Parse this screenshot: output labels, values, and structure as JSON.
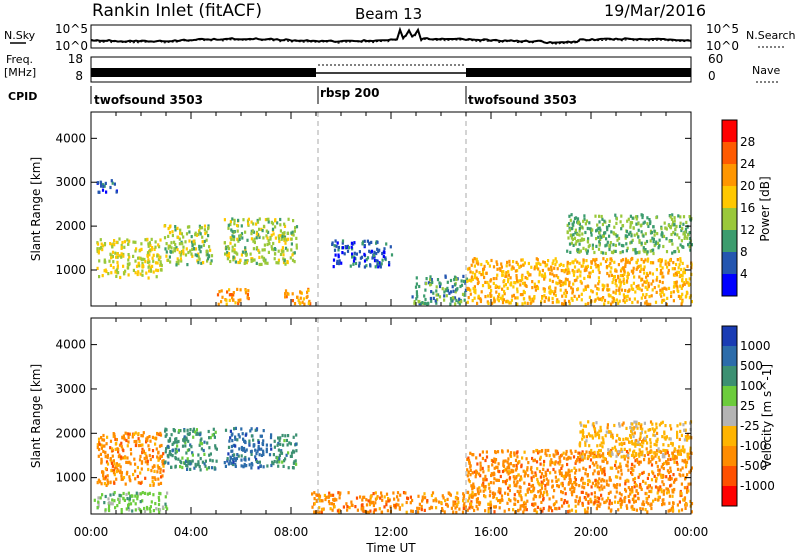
{
  "header": {
    "title": "Rankin Inlet (fitACF)",
    "beam": "Beam 13",
    "date": "19/Mar/2016"
  },
  "noise_panel": {
    "left_label": "N.Sky",
    "left_ticks": [
      "10^5",
      "10^0"
    ],
    "right_ticks": [
      "10^5",
      "10^0"
    ],
    "right_label": "N.Search"
  },
  "freq_panel": {
    "left_label_line1": "Freq.",
    "left_label_line2": "[MHz]",
    "left_ticks": [
      "18",
      "8"
    ],
    "right_ticks": [
      "60",
      "0"
    ],
    "right_label": "Nave"
  },
  "cpid": {
    "label": "CPID",
    "segments": [
      {
        "name": "twofsound 3503",
        "start_hour": 0,
        "end_hour": 9
      },
      {
        "name": "rbsp 200",
        "start_hour": 9,
        "end_hour": 15
      },
      {
        "name": "twofsound 3503",
        "start_hour": 15,
        "end_hour": 24
      }
    ]
  },
  "power_colorbar": {
    "label": "Power [dB]",
    "ticks": [
      "28",
      "24",
      "20",
      "16",
      "12",
      "8",
      "4"
    ],
    "colors": [
      "#ff0000",
      "#ff5a00",
      "#ff9600",
      "#ffc800",
      "#9ac83a",
      "#3c9c6e",
      "#2456b0",
      "#0000ff"
    ]
  },
  "velocity_colorbar": {
    "label": "Velocity [m s^-1]",
    "ticks": [
      "1000",
      "500",
      "100",
      "25",
      "-25",
      "-100",
      "-500",
      "-1000"
    ],
    "colors": [
      "#1a3cb4",
      "#2c6caa",
      "#3c9072",
      "#6ccc3c",
      "#b4b4b4",
      "#ffb400",
      "#ff8c00",
      "#ff5000",
      "#ff0000"
    ]
  },
  "chart_data": [
    {
      "type": "heatmap",
      "name": "power",
      "xlabel": "Time UT",
      "ylabel": "Slant Range [km]",
      "xlim": [
        0,
        24
      ],
      "ylim": [
        180,
        4600
      ],
      "xticks": [
        "00:00",
        "04:00",
        "08:00",
        "12:00",
        "16:00",
        "20:00",
        "00:00"
      ],
      "yticks": [
        1000,
        2000,
        3000,
        4000
      ],
      "regions": [
        {
          "t0": 0.2,
          "t1": 2.8,
          "r0": 850,
          "r1": 1750,
          "value": 18
        },
        {
          "t0": 2.9,
          "t1": 4.8,
          "r0": 1150,
          "r1": 2050,
          "value": 16
        },
        {
          "t0": 5.3,
          "t1": 8.2,
          "r0": 1150,
          "r1": 2200,
          "value": 16
        },
        {
          "t0": 5.0,
          "t1": 6.3,
          "r0": 250,
          "r1": 600,
          "value": 24
        },
        {
          "t0": 7.7,
          "t1": 8.8,
          "r0": 250,
          "r1": 600,
          "value": 24
        },
        {
          "t0": 9.6,
          "t1": 12.0,
          "r0": 1100,
          "r1": 1700,
          "value": 8
        },
        {
          "t0": 12.8,
          "t1": 15.0,
          "r0": 250,
          "r1": 900,
          "value": 12
        },
        {
          "t0": 15.0,
          "t1": 24.0,
          "r0": 250,
          "r1": 1300,
          "value": 22
        },
        {
          "t0": 0.2,
          "t1": 1.0,
          "r0": 2800,
          "r1": 3100,
          "value": 8
        },
        {
          "t0": 19.0,
          "t1": 24.0,
          "r0": 1400,
          "r1": 2300,
          "value": 14
        }
      ]
    },
    {
      "type": "heatmap",
      "name": "velocity",
      "xlabel": "Time UT",
      "ylabel": "Slant Range [km]",
      "xlim": [
        0,
        24
      ],
      "ylim": [
        180,
        4600
      ],
      "xticks": [
        "00:00",
        "04:00",
        "08:00",
        "12:00",
        "16:00",
        "20:00",
        "00:00"
      ],
      "yticks": [
        1000,
        2000,
        3000,
        4000
      ],
      "regions": [
        {
          "t0": 0.2,
          "t1": 2.9,
          "r0": 850,
          "r1": 2050,
          "value": -150
        },
        {
          "t0": 2.9,
          "t1": 5.0,
          "r0": 1200,
          "r1": 2150,
          "value": 200
        },
        {
          "t0": 5.3,
          "t1": 7.2,
          "r0": 1250,
          "r1": 2150,
          "value": 900
        },
        {
          "t0": 7.2,
          "t1": 8.2,
          "r0": 1250,
          "r1": 2000,
          "value": 150
        },
        {
          "t0": 0.1,
          "t1": 3.0,
          "r0": 250,
          "r1": 700,
          "value": 60
        },
        {
          "t0": 8.8,
          "t1": 15.0,
          "r0": 250,
          "r1": 700,
          "value": -150
        },
        {
          "t0": 15.0,
          "t1": 24.0,
          "r0": 250,
          "r1": 1650,
          "value": -300
        },
        {
          "t0": 19.5,
          "t1": 24.0,
          "r0": 1500,
          "r1": 2300,
          "value": -60
        }
      ]
    }
  ]
}
